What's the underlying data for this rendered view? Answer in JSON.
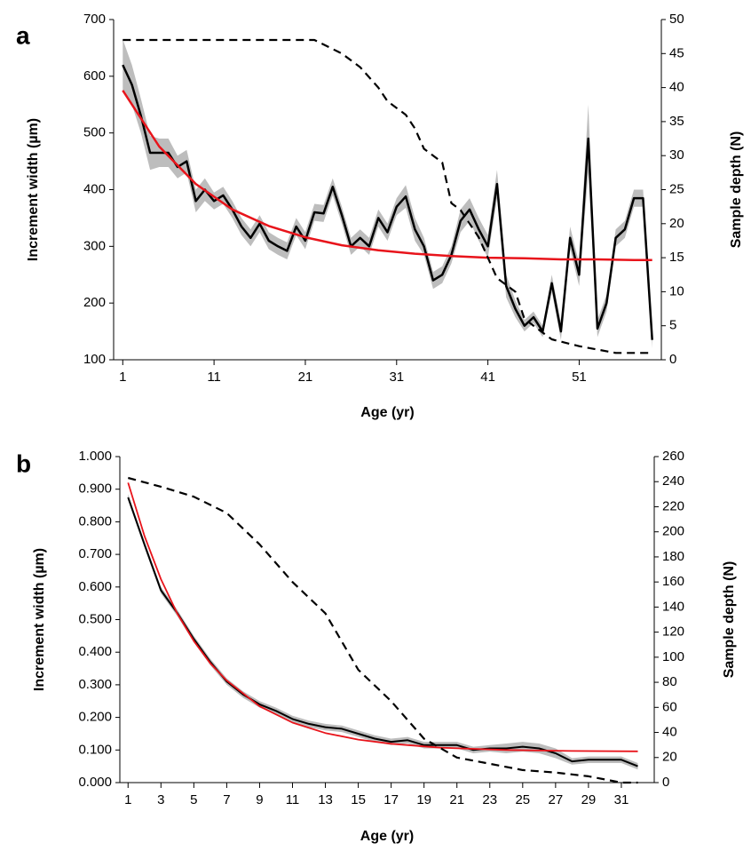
{
  "chart_data": [
    {
      "type": "line",
      "panel_label": "a",
      "x_label": "Age (yr)",
      "y_label": "Increment width (µm)",
      "y2_label": "Sample depth (N)",
      "x": [
        1,
        2,
        3,
        4,
        5,
        6,
        7,
        8,
        9,
        10,
        11,
        12,
        13,
        14,
        15,
        16,
        17,
        18,
        19,
        20,
        21,
        22,
        23,
        24,
        25,
        26,
        27,
        28,
        29,
        30,
        31,
        32,
        33,
        34,
        35,
        36,
        37,
        38,
        39,
        40,
        41,
        42,
        43,
        44,
        45,
        46,
        47,
        48,
        49,
        50,
        51,
        52,
        53,
        54,
        55,
        56,
        57,
        58,
        59
      ],
      "xlim": [
        0,
        60
      ],
      "xticks": [
        1,
        11,
        21,
        31,
        41,
        51
      ],
      "ylim": [
        100,
        700
      ],
      "yticks": [
        100,
        200,
        300,
        400,
        500,
        600,
        700
      ],
      "y2lim": [
        0,
        50
      ],
      "y2ticks": [
        0,
        5,
        10,
        15,
        20,
        25,
        30,
        35,
        40,
        45,
        50
      ],
      "band_color": "#bdbdbd",
      "series": [
        {
          "color": "#000000",
          "width": 2.5,
          "values": [
            620,
            585,
            530,
            465,
            465,
            465,
            440,
            450,
            380,
            400,
            380,
            390,
            365,
            335,
            315,
            340,
            310,
            300,
            292,
            335,
            310,
            360,
            358,
            405,
            355,
            300,
            315,
            300,
            350,
            325,
            370,
            388,
            330,
            300,
            240,
            250,
            285,
            345,
            365,
            330,
            300,
            410,
            230,
            190,
            160,
            175,
            150,
            235,
            150,
            315,
            250,
            490,
            155,
            200,
            315,
            330,
            385,
            385,
            135
          ],
          "error": [
            45,
            35,
            30,
            30,
            25,
            25,
            20,
            20,
            20,
            20,
            15,
            15,
            15,
            15,
            15,
            15,
            15,
            15,
            15,
            15,
            15,
            15,
            15,
            15,
            15,
            15,
            15,
            15,
            15,
            15,
            15,
            20,
            20,
            15,
            15,
            15,
            15,
            20,
            20,
            20,
            20,
            25,
            20,
            15,
            10,
            10,
            10,
            15,
            15,
            20,
            20,
            60,
            15,
            15,
            15,
            15,
            15,
            15,
            15
          ]
        },
        {
          "color": "#e8141b",
          "width": 2.5,
          "x": [
            1,
            5,
            9,
            13,
            17,
            21,
            25,
            29,
            33,
            37,
            41,
            45,
            49,
            53,
            57,
            59
          ],
          "values": [
            575,
            476,
            410,
            365,
            336,
            316,
            302,
            293,
            287,
            283,
            280,
            279,
            277,
            277,
            276,
            276
          ]
        },
        {
          "color": "#000000",
          "width": 2.2,
          "dashed": true,
          "axis": "y2",
          "x": [
            1,
            22,
            25,
            27,
            29,
            30,
            32,
            33,
            34,
            36,
            37,
            38,
            40,
            41,
            42,
            44,
            45,
            47,
            48,
            51,
            55,
            59
          ],
          "values": [
            47,
            47,
            45,
            43,
            40,
            38,
            36,
            34,
            31,
            29,
            23,
            22,
            18,
            15,
            12,
            10,
            6,
            4,
            3,
            2,
            1,
            1
          ]
        }
      ]
    },
    {
      "type": "line",
      "panel_label": "b",
      "x_label": "Age (yr)",
      "y_label": "Increment width (µm)",
      "y2_label": "Sample depth (N)",
      "x": [
        1,
        2,
        3,
        4,
        5,
        6,
        7,
        8,
        9,
        10,
        11,
        12,
        13,
        14,
        15,
        16,
        17,
        18,
        19,
        20,
        21,
        22,
        23,
        24,
        25,
        26,
        27,
        28,
        29,
        30,
        31,
        32
      ],
      "xlim": [
        0.5,
        33
      ],
      "xticks": [
        1,
        3,
        5,
        7,
        9,
        11,
        13,
        15,
        17,
        19,
        21,
        23,
        25,
        27,
        29,
        31
      ],
      "ylim": [
        0,
        1
      ],
      "yticks": [
        {
          "value": 0,
          "label": "0.000"
        },
        {
          "value": 0.1,
          "label": "0.100"
        },
        {
          "value": 0.2,
          "label": "0.200"
        },
        {
          "value": 0.3,
          "label": "0.300"
        },
        {
          "value": 0.4,
          "label": "0.400"
        },
        {
          "value": 0.5,
          "label": "0.500"
        },
        {
          "value": 0.6,
          "label": "0.600"
        },
        {
          "value": 0.7,
          "label": "0.700"
        },
        {
          "value": 0.8,
          "label": "0.800"
        },
        {
          "value": 0.9,
          "label": "0.900"
        },
        {
          "value": 1,
          "label": "1.000"
        }
      ],
      "y2lim": [
        0,
        260
      ],
      "y2ticks": [
        0,
        20,
        40,
        60,
        80,
        100,
        120,
        140,
        160,
        180,
        200,
        220,
        240,
        260
      ],
      "band_color": "#bdbdbd",
      "series": [
        {
          "color": "#000000",
          "width": 2,
          "values": [
            0.875,
            0.73,
            0.59,
            0.52,
            0.44,
            0.37,
            0.31,
            0.27,
            0.24,
            0.22,
            0.195,
            0.18,
            0.17,
            0.165,
            0.15,
            0.135,
            0.125,
            0.13,
            0.115,
            0.115,
            0.115,
            0.1,
            0.105,
            0.105,
            0.11,
            0.105,
            0.09,
            0.065,
            0.07,
            0.07,
            0.07,
            0.05
          ],
          "error": [
            0.01,
            0.01,
            0.01,
            0.01,
            0.01,
            0.01,
            0.01,
            0.01,
            0.01,
            0.01,
            0.01,
            0.01,
            0.01,
            0.01,
            0.01,
            0.01,
            0.01,
            0.01,
            0.01,
            0.01,
            0.01,
            0.01,
            0.01,
            0.015,
            0.015,
            0.015,
            0.015,
            0.01,
            0.01,
            0.01,
            0.01,
            0.01
          ]
        },
        {
          "color": "#e8141b",
          "width": 1.8,
          "x": [
            1,
            2,
            3,
            4,
            5,
            6,
            7,
            9,
            11,
            13,
            15,
            17,
            20,
            24,
            28,
            32
          ],
          "values": [
            0.92,
            0.756,
            0.624,
            0.518,
            0.434,
            0.366,
            0.313,
            0.234,
            0.184,
            0.152,
            0.132,
            0.119,
            0.107,
            0.1,
            0.097,
            0.096
          ]
        },
        {
          "color": "#000000",
          "width": 2.2,
          "dashed": true,
          "axis": "y2",
          "x": [
            1,
            3,
            5,
            7,
            9,
            11,
            13,
            15,
            17,
            19,
            21,
            23,
            25,
            27,
            29,
            31,
            32
          ],
          "values": [
            243,
            236,
            228,
            215,
            190,
            160,
            135,
            90,
            65,
            35,
            20,
            15,
            10,
            8,
            5,
            0,
            0
          ]
        }
      ]
    }
  ]
}
